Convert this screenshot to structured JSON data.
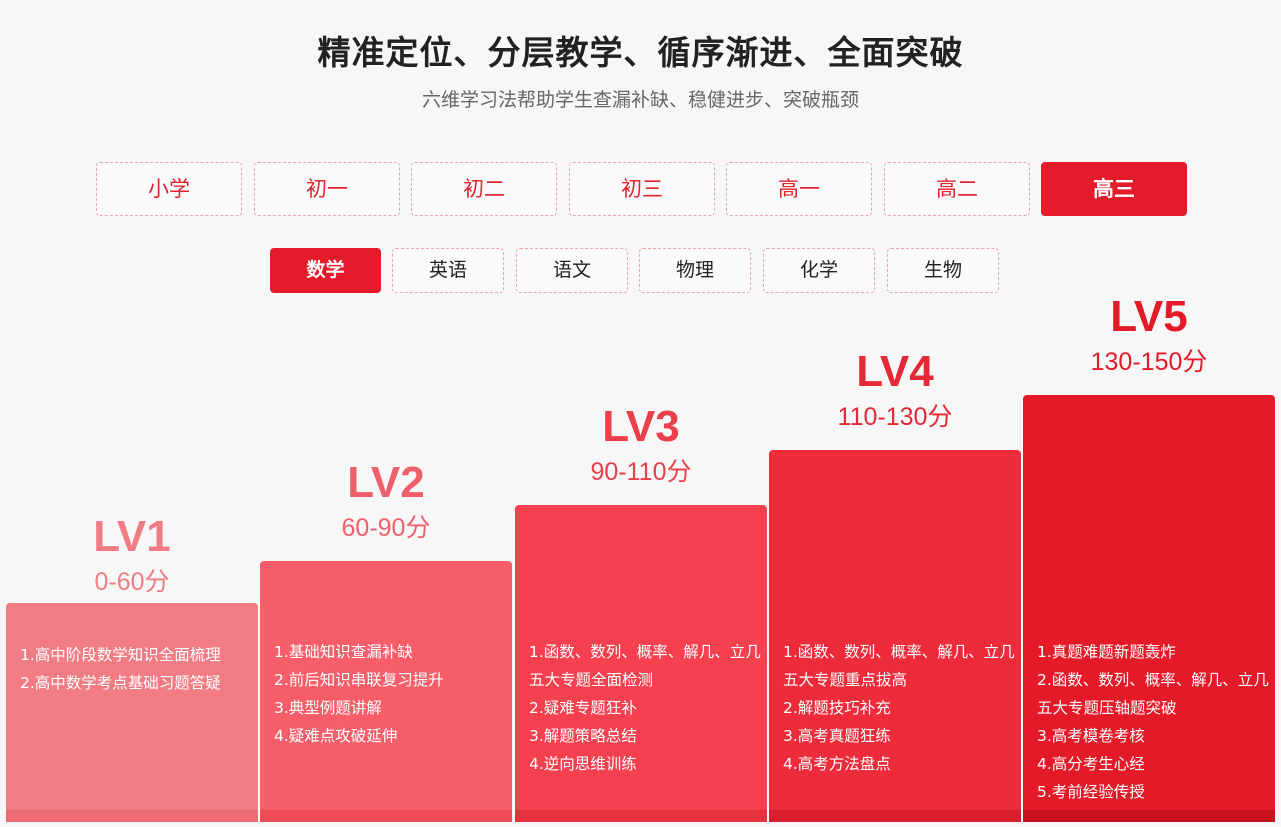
{
  "header": {
    "title": "精准定位、分层教学、循序渐进、全面突破",
    "subtitle": "六维学习法帮助学生查漏补缺、稳健进步、突破瓶颈"
  },
  "grades": {
    "selected": "高三",
    "items": [
      "小学",
      "初一",
      "初二",
      "初三",
      "高一",
      "高二",
      "高三"
    ]
  },
  "subjects": {
    "selected": "数学",
    "items": [
      "数学",
      "英语",
      "语文",
      "物理",
      "化学",
      "生物"
    ]
  },
  "levels": [
    {
      "name": "LV1",
      "range": "0-60分",
      "title_color": "#f27c84",
      "block_color": "#f27c84",
      "items": [
        "1.高中阶段数学知识全面梳理",
        "2.高中数学考点基础习题答疑"
      ]
    },
    {
      "name": "LV2",
      "range": "60-90分",
      "title_color": "#f0606b",
      "block_color": "#f75e6a",
      "items": [
        "1.基础知识查漏补缺",
        "2.前后知识串联复习提升",
        "3.典型例题讲解",
        "4.疑难点攻破延伸"
      ]
    },
    {
      "name": "LV3",
      "range": "90-110分",
      "title_color": "#ec3f4c",
      "block_color": "#f5414f",
      "items": [
        "1.函数、数列、概率、解几、立几",
        "五大专题全面检测",
        "2.疑难专题狂补",
        "3.解题策略总结",
        "4.逆向思维训练"
      ]
    },
    {
      "name": "LV4",
      "range": "110-130分",
      "title_color": "#e52935",
      "block_color": "#ee2b3a",
      "items": [
        "1.函数、数列、概率、解几、立几",
        "五大专题重点拔高",
        "2.解题技巧补充",
        "3.高考真题狂练",
        "4.高考方法盘点"
      ]
    },
    {
      "name": "LV5",
      "range": "130-150分",
      "title_color": "#e31a28",
      "block_color": "#e41a28",
      "items": [
        "1.真题难题新题轰炸",
        "2.函数、数列、概率、解几、立几",
        "五大专题压轴题突破",
        "3.高考模卷考核",
        "4.高分考生心经",
        "5.考前经验传授"
      ]
    }
  ]
}
